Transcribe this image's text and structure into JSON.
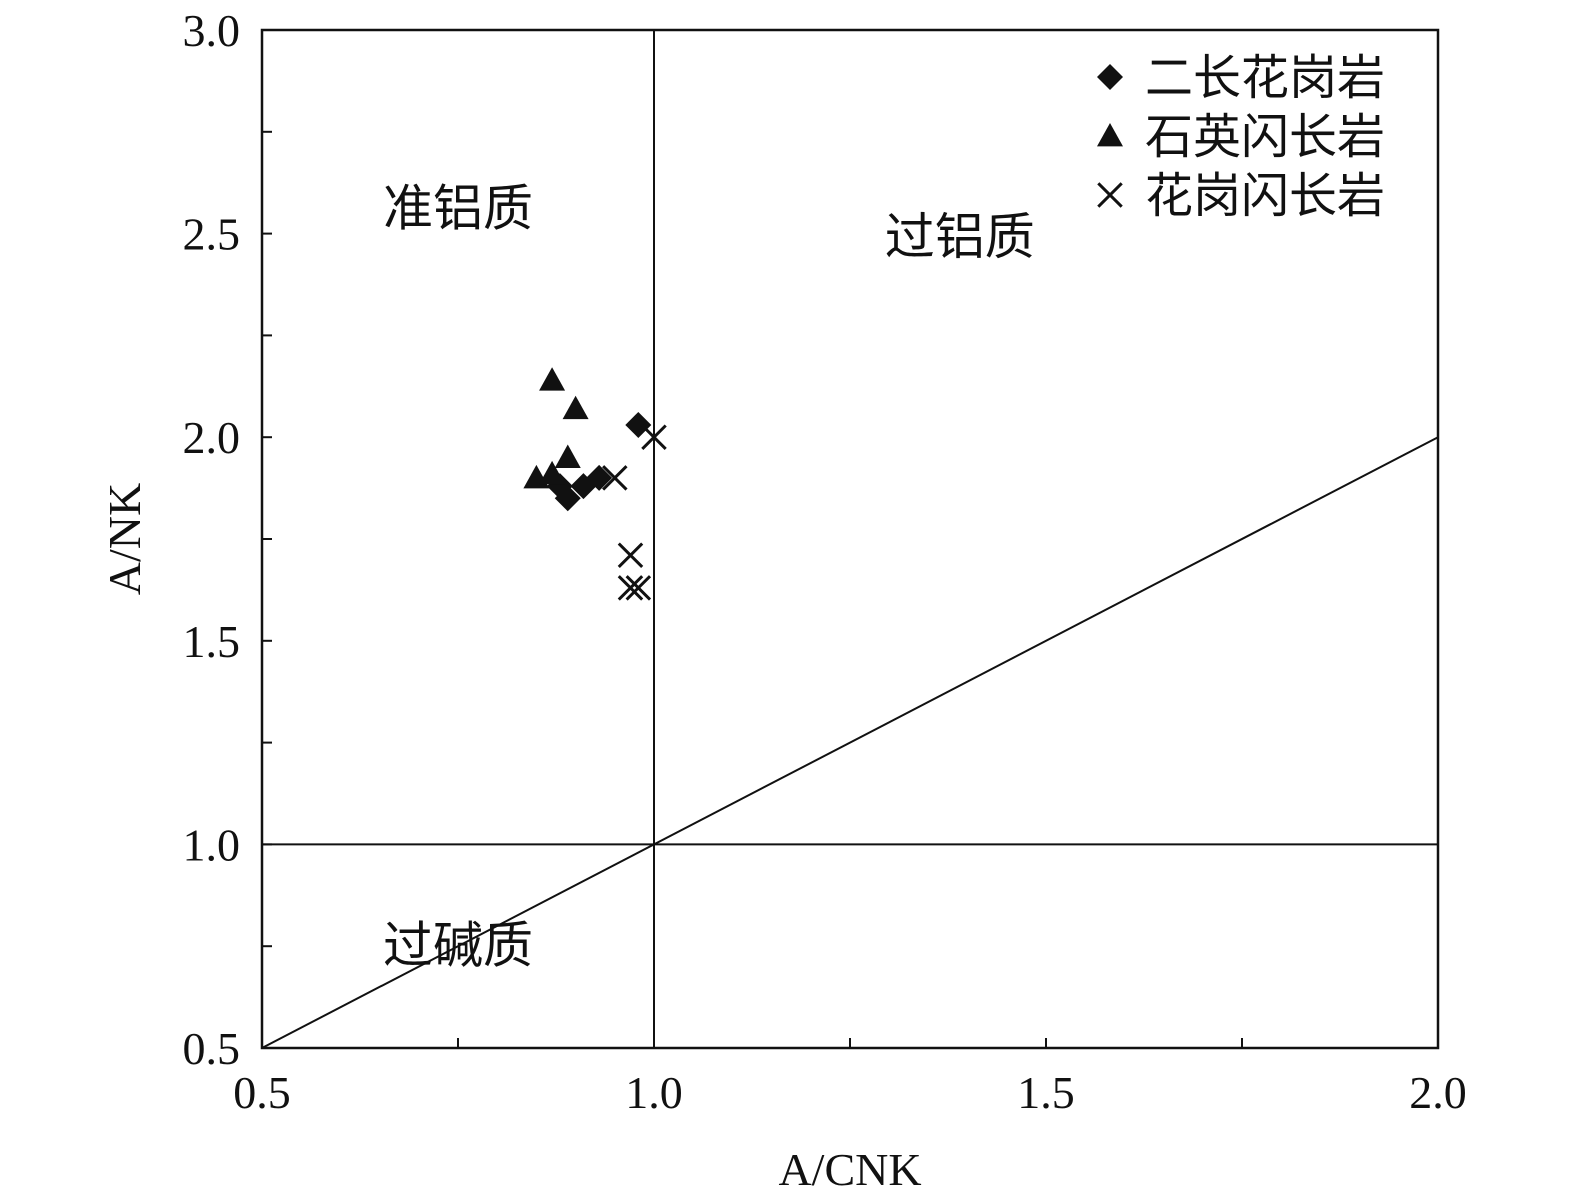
{
  "chart_data": {
    "type": "scatter",
    "xlabel": "A/CNK",
    "ylabel": "A/NK",
    "xlim": [
      0.5,
      2.0
    ],
    "ylim": [
      0.5,
      3.0
    ],
    "x_ticks": [
      {
        "value": 0.5,
        "label": "0.5"
      },
      {
        "value": 1.0,
        "label": "1.0"
      },
      {
        "value": 1.5,
        "label": "1.5"
      },
      {
        "value": 2.0,
        "label": "2.0"
      }
    ],
    "x_minor_ticks": [
      0.75,
      1.25,
      1.75
    ],
    "y_ticks": [
      {
        "value": 0.5,
        "label": "0.5"
      },
      {
        "value": 1.0,
        "label": "1.0"
      },
      {
        "value": 1.5,
        "label": "1.5"
      },
      {
        "value": 2.0,
        "label": "2.0"
      },
      {
        "value": 2.5,
        "label": "2.5"
      },
      {
        "value": 3.0,
        "label": "3.0"
      }
    ],
    "y_minor_ticks": [
      0.75,
      1.25,
      1.75,
      2.25,
      2.75
    ],
    "grid": false,
    "legend_position": "top-right",
    "reference_lines": [
      {
        "x1": 1.0,
        "y1": 0.5,
        "x2": 1.0,
        "y2": 3.0
      },
      {
        "x1": 0.5,
        "y1": 1.0,
        "x2": 2.0,
        "y2": 1.0
      },
      {
        "x1": 0.5,
        "y1": 0.5,
        "x2": 2.0,
        "y2": 2.0
      }
    ],
    "region_labels": [
      {
        "text": "准铝质",
        "x": 0.75,
        "y": 2.52
      },
      {
        "text": "过铝质",
        "x": 1.39,
        "y": 2.45
      },
      {
        "text": "过碱质",
        "x": 0.75,
        "y": 0.71
      }
    ],
    "series": [
      {
        "name": "二长花岗岩",
        "marker": "diamond",
        "points": [
          [
            0.98,
            2.03
          ],
          [
            0.89,
            1.85
          ],
          [
            0.91,
            1.88
          ],
          [
            0.93,
            1.9
          ],
          [
            0.88,
            1.88
          ]
        ]
      },
      {
        "name": "石英闪长岩",
        "marker": "triangle",
        "points": [
          [
            0.87,
            2.14
          ],
          [
            0.9,
            2.07
          ],
          [
            0.89,
            1.95
          ],
          [
            0.85,
            1.9
          ],
          [
            0.87,
            1.91
          ]
        ]
      },
      {
        "name": "花岗闪长岩",
        "marker": "x",
        "points": [
          [
            1.0,
            2.0
          ],
          [
            0.95,
            1.9
          ],
          [
            0.97,
            1.71
          ],
          [
            0.97,
            1.63
          ],
          [
            0.98,
            1.63
          ]
        ]
      }
    ]
  }
}
